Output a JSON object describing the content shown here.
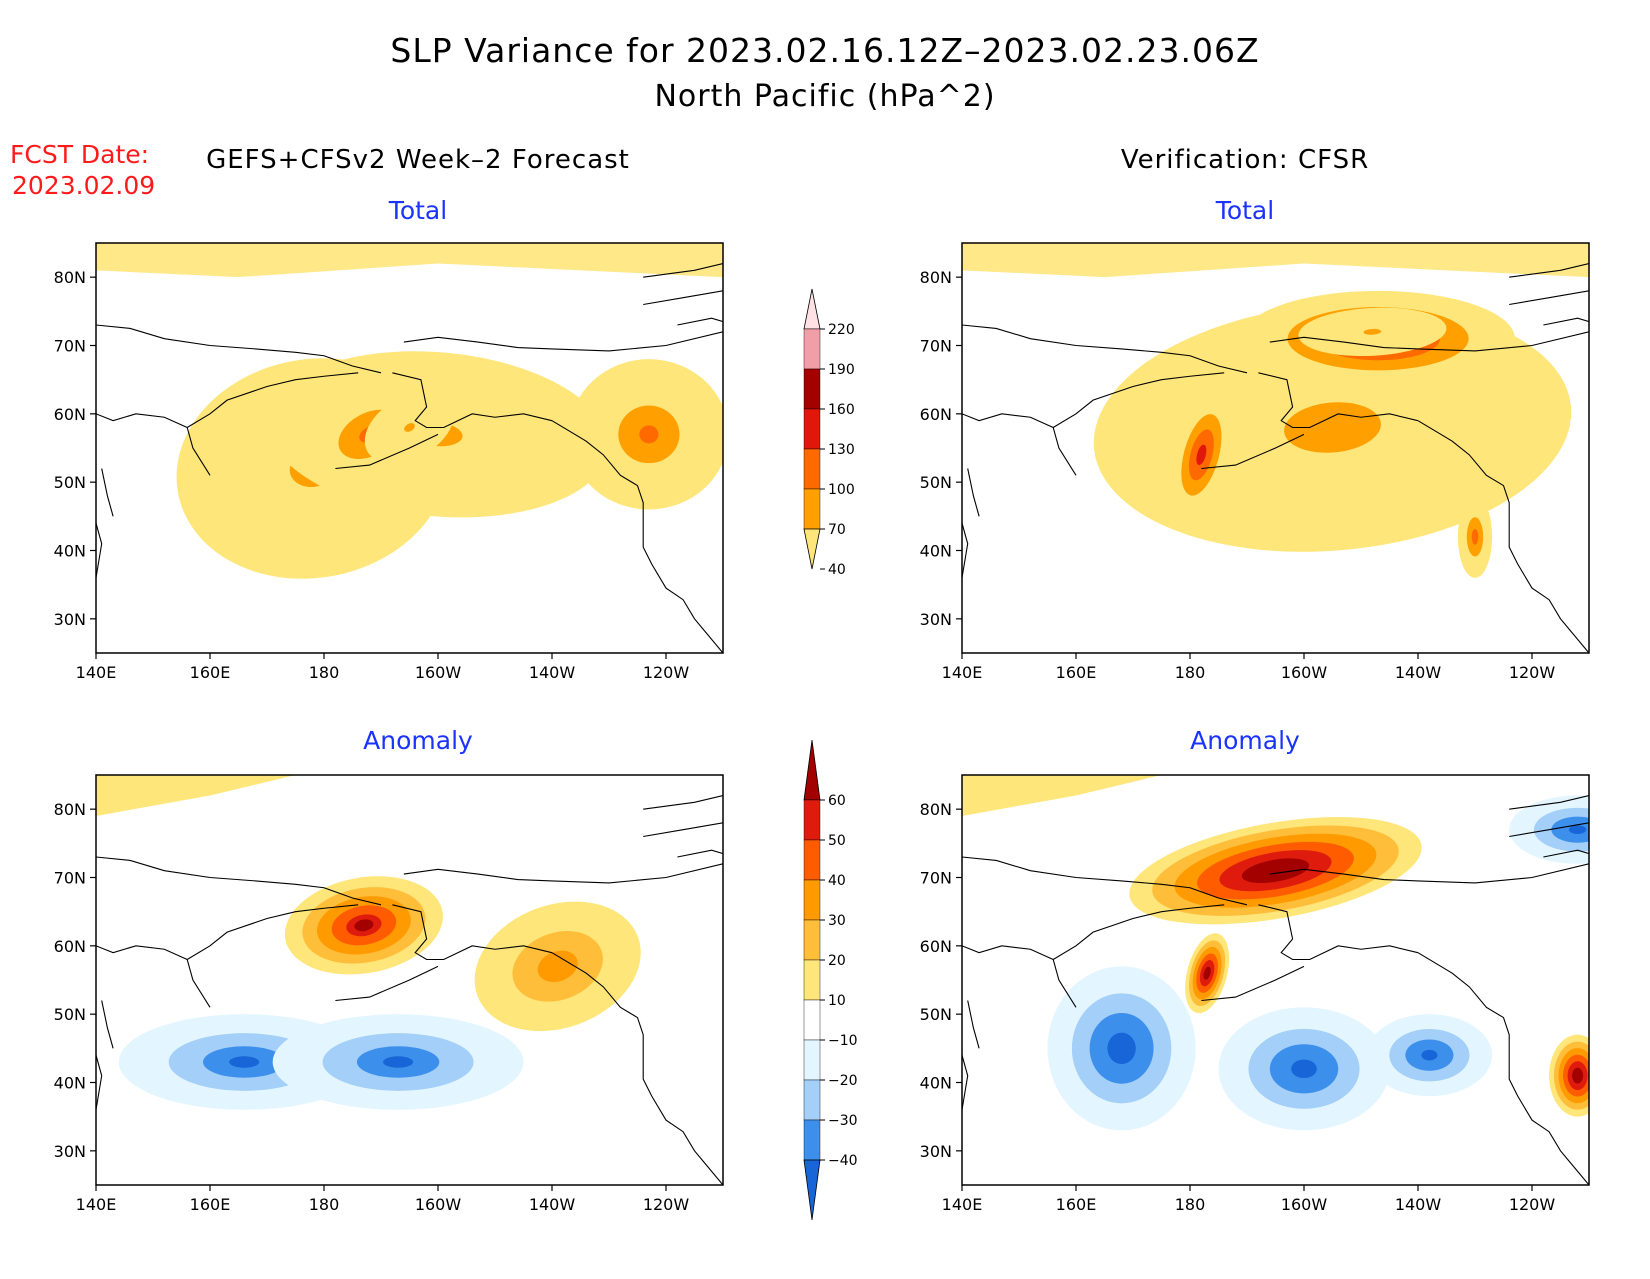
{
  "title": {
    "line1": "SLP Variance for 2023.02.16.12Z–2023.02.23.06Z",
    "line2": "North Pacific (hPa^2)"
  },
  "fcst": {
    "label": "FCST Date:",
    "date": "2023.02.09"
  },
  "columns": {
    "left": "GEFS+CFSv2 Week–2 Forecast",
    "right": "Verification: CFSR"
  },
  "axes": {
    "lon_labels": [
      "140E",
      "160E",
      "180",
      "160W",
      "140W",
      "120W"
    ],
    "lat_labels": [
      "80N",
      "70N",
      "60N",
      "50N",
      "40N",
      "30N"
    ]
  },
  "panels": [
    {
      "id": "forecast-total",
      "subtitle": "Total",
      "scale": "total",
      "blobs": [
        {
          "lon": 178,
          "lat": 52,
          "rx": 24,
          "ry": 16,
          "rot": -10,
          "value": 82
        },
        {
          "lon": 200,
          "lat": 57,
          "rx": 30,
          "ry": 12,
          "rot": 5,
          "value": 80
        },
        {
          "lon": 237,
          "lat": 57,
          "rx": 14,
          "ry": 11,
          "rot": 0,
          "value": 105
        },
        {
          "lon": 188,
          "lat": 57,
          "rx": 13,
          "ry": 7,
          "rot": -28,
          "value": 115
        },
        {
          "lon": 195,
          "lat": 58,
          "rx": 8.5,
          "ry": 4.5,
          "rot": -30,
          "value": 75
        }
      ]
    },
    {
      "id": "verification-total",
      "subtitle": "Total",
      "scale": "total",
      "blobs": [
        {
          "lon": 205,
          "lat": 58,
          "rx": 42,
          "ry": 18,
          "rot": -5,
          "value": 85
        },
        {
          "lon": 213,
          "lat": 71,
          "rx": 24,
          "ry": 7,
          "rot": 0,
          "value": 165
        },
        {
          "lon": 212,
          "lat": 72,
          "rx": 13,
          "ry": 3.5,
          "rot": -3,
          "value": 70
        },
        {
          "lon": 182,
          "lat": 54,
          "rx": 5,
          "ry": 10,
          "rot": 15,
          "value": 150
        },
        {
          "lon": 230,
          "lat": 42,
          "rx": 3,
          "ry": 6,
          "rot": 0,
          "value": 120
        }
      ]
    },
    {
      "id": "forecast-anomaly",
      "subtitle": "Anomaly",
      "scale": "anomaly",
      "blobs": [
        {
          "lon": 187,
          "lat": 63,
          "rx": 14,
          "ry": 7,
          "rot": -10,
          "value": 62
        },
        {
          "lon": 221,
          "lat": 57,
          "rx": 15,
          "ry": 9,
          "rot": -20,
          "value": 38
        },
        {
          "lon": 166,
          "lat": 43,
          "rx": 22,
          "ry": 7,
          "rot": 0,
          "value": -42
        },
        {
          "lon": 193,
          "lat": 43,
          "rx": 22,
          "ry": 7,
          "rot": 0,
          "value": -42
        }
      ]
    },
    {
      "id": "verification-anomaly",
      "subtitle": "Anomaly",
      "scale": "anomaly",
      "blobs": [
        {
          "lon": 195,
          "lat": 71,
          "rx": 26,
          "ry": 7,
          "rot": -10,
          "value": 75
        },
        {
          "lon": 183,
          "lat": 56,
          "rx": 3.5,
          "ry": 6,
          "rot": 15,
          "value": 70
        },
        {
          "lon": 168,
          "lat": 45,
          "rx": 13,
          "ry": 12,
          "rot": 0,
          "value": -48
        },
        {
          "lon": 200,
          "lat": 42,
          "rx": 15,
          "ry": 9,
          "rot": 0,
          "value": -46
        },
        {
          "lon": 222,
          "lat": 44,
          "rx": 11,
          "ry": 6,
          "rot": 0,
          "value": -45
        },
        {
          "lon": 248,
          "lat": 41,
          "rx": 5,
          "ry": 6,
          "rot": 0,
          "value": 72
        },
        {
          "lon": 248,
          "lat": 77,
          "rx": 12,
          "ry": 5,
          "rot": 0,
          "value": -45
        }
      ]
    }
  ],
  "colorbars": [
    {
      "id": "total",
      "labels": [
        "40",
        "70",
        "100",
        "130",
        "160",
        "190",
        "220"
      ],
      "colors": [
        "#ffe67a",
        "#ffa000",
        "#ff6a00",
        "#e1170b",
        "#a50000",
        "#f29ea8",
        "#fde1e4"
      ]
    },
    {
      "id": "anomaly",
      "labels": [
        "−40",
        "−30",
        "−20",
        "−10",
        "10",
        "20",
        "30",
        "40",
        "50",
        "60"
      ],
      "colors": [
        "#1765d6",
        "#3d8fec",
        "#a3cff8",
        "#e3f5ff",
        "#ffffff",
        "#ffe67a",
        "#ffbe3a",
        "#ff9a00",
        "#ff5c00",
        "#de1b0d",
        "#a30000"
      ]
    }
  ]
}
